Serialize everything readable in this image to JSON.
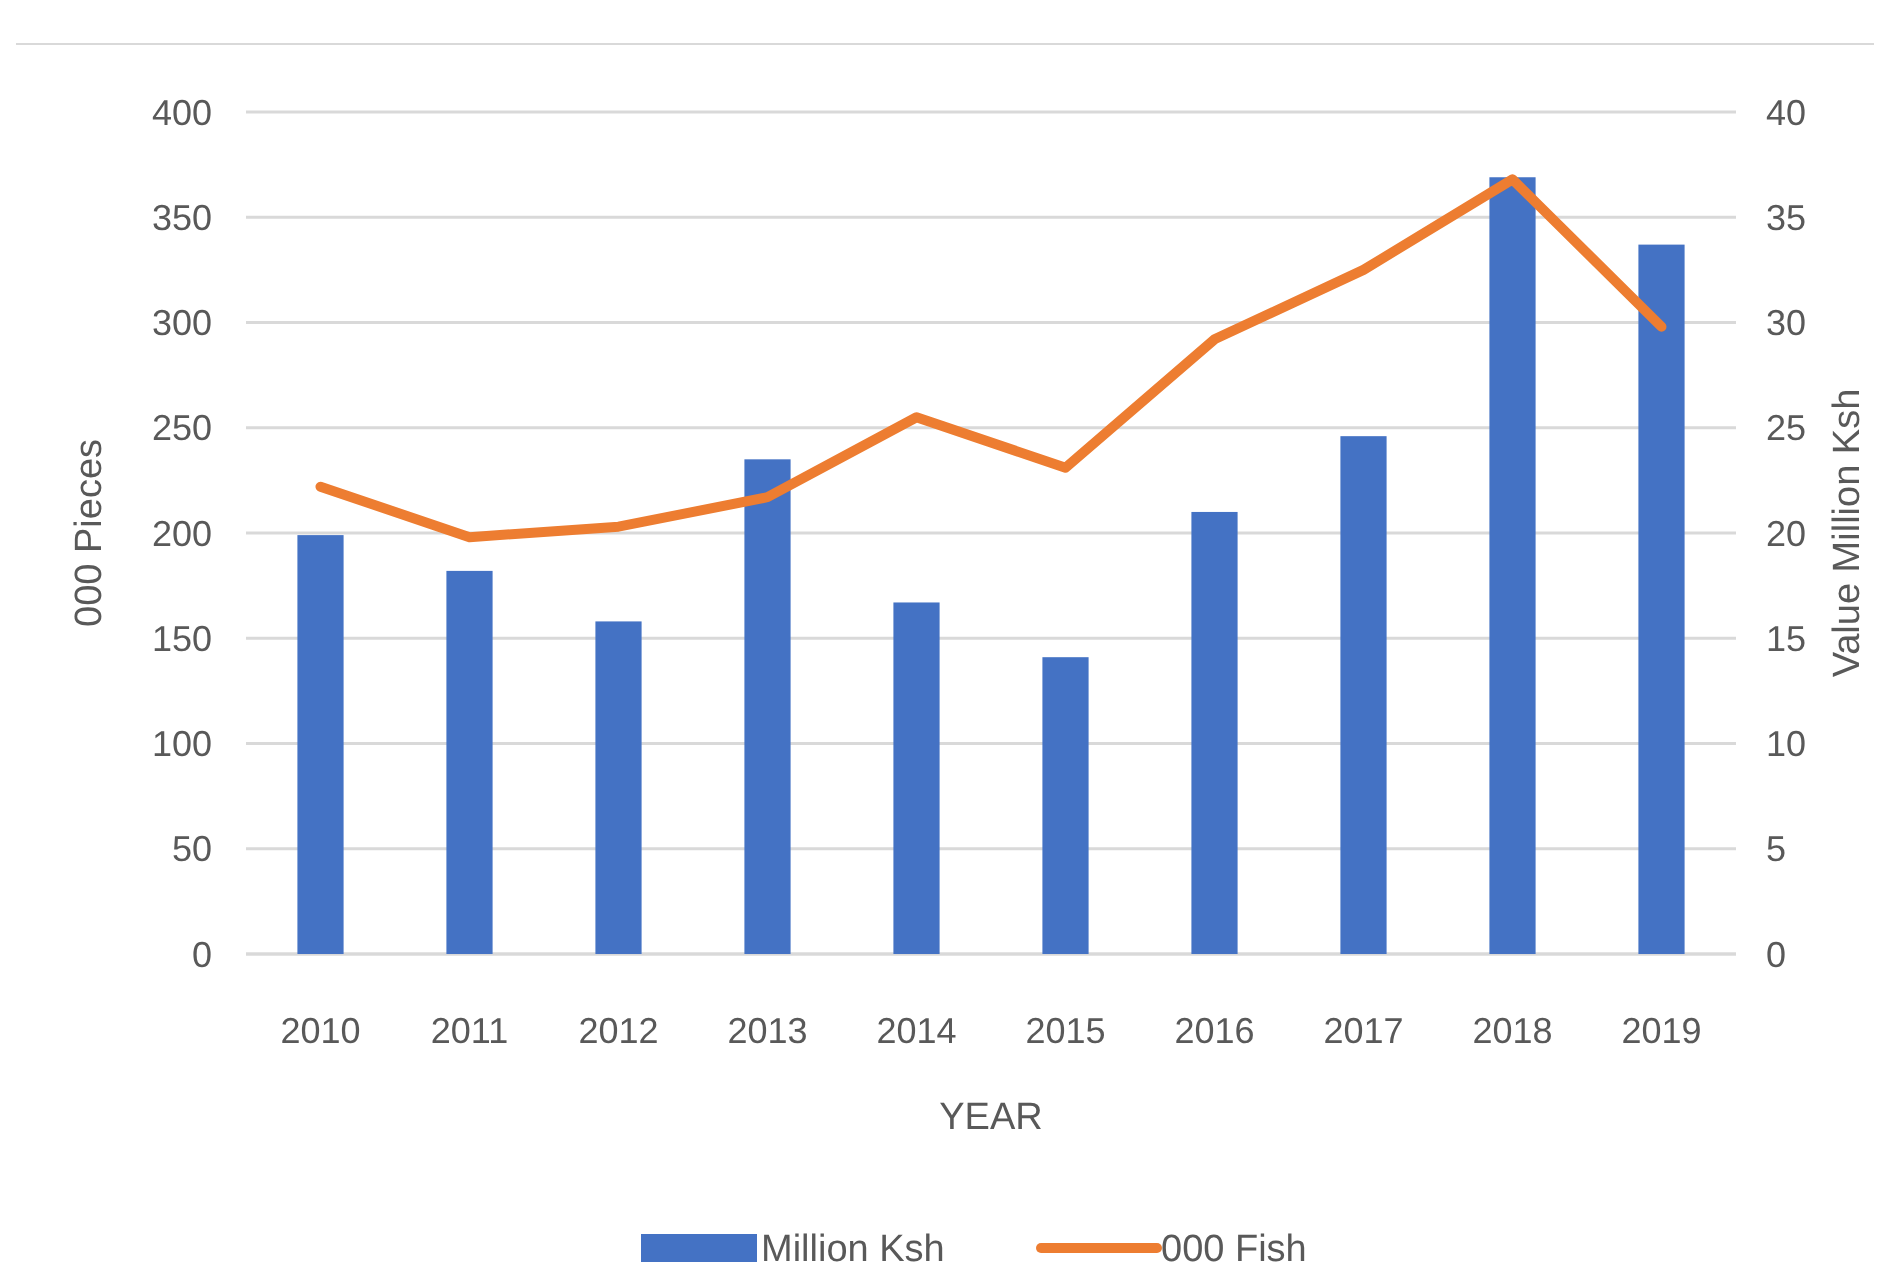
{
  "chart_data": {
    "type": "bar",
    "categories": [
      "2010",
      "2011",
      "2012",
      "2013",
      "2014",
      "2015",
      "2016",
      "2017",
      "2018",
      "2019"
    ],
    "xlabel": "YEAR",
    "ylabel": "000 Pieces",
    "y2label": "Value Million Ksh",
    "ylim": [
      0,
      400
    ],
    "yticks": [
      0,
      50,
      100,
      150,
      200,
      250,
      300,
      350,
      400
    ],
    "y2lim": [
      0,
      40
    ],
    "y2ticks": [
      0,
      5,
      10,
      15,
      20,
      25,
      30,
      35,
      40
    ],
    "grid": "y",
    "legend": "bottom",
    "series": [
      {
        "name": "Million Ksh",
        "axis": "y2",
        "color": "#4472c4",
        "values": [
          19.9,
          18.2,
          15.8,
          23.5,
          16.7,
          14.1,
          21.0,
          24.6,
          36.9,
          33.7
        ]
      },
      {
        "name": "000 Fish",
        "type": "line",
        "axis": "y",
        "color": "#ed7d31",
        "values": [
          222,
          198,
          203,
          217,
          255,
          231,
          292,
          325,
          368,
          298
        ]
      }
    ]
  }
}
